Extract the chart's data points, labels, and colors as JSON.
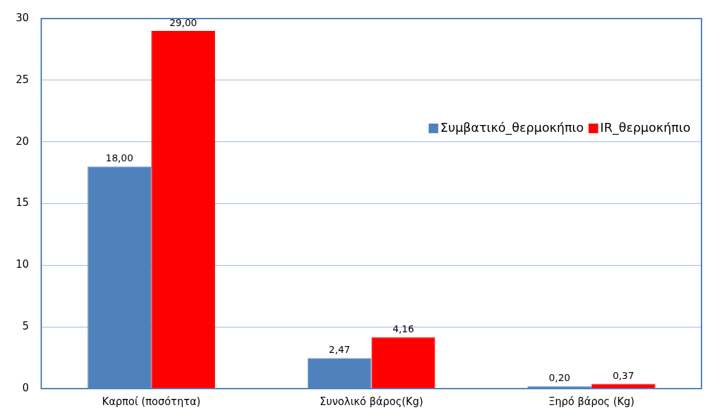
{
  "chart_data": {
    "type": "bar",
    "categories": [
      "Καρποί (ποσότητα)",
      "Συνολικό βάρος(Kg)",
      "Ξηρό βάρος (Kg)"
    ],
    "series": [
      {
        "name": "Συμβατικό_θερμοκήπιο",
        "color": "#4f81bd",
        "values": [
          18,
          2.47,
          0.2
        ],
        "value_labels": [
          "18,00",
          "2,47",
          "0,20"
        ]
      },
      {
        "name": "IR_θερμοκήπιο",
        "color": "#ff0000",
        "values": [
          29,
          4.16,
          0.37
        ],
        "value_labels": [
          "29,00",
          "4,16",
          "0,37"
        ]
      }
    ],
    "ylim": [
      0,
      30
    ],
    "yticks": [
      0,
      5,
      10,
      15,
      20,
      25,
      30
    ],
    "grid": "y",
    "legend": "top right"
  }
}
